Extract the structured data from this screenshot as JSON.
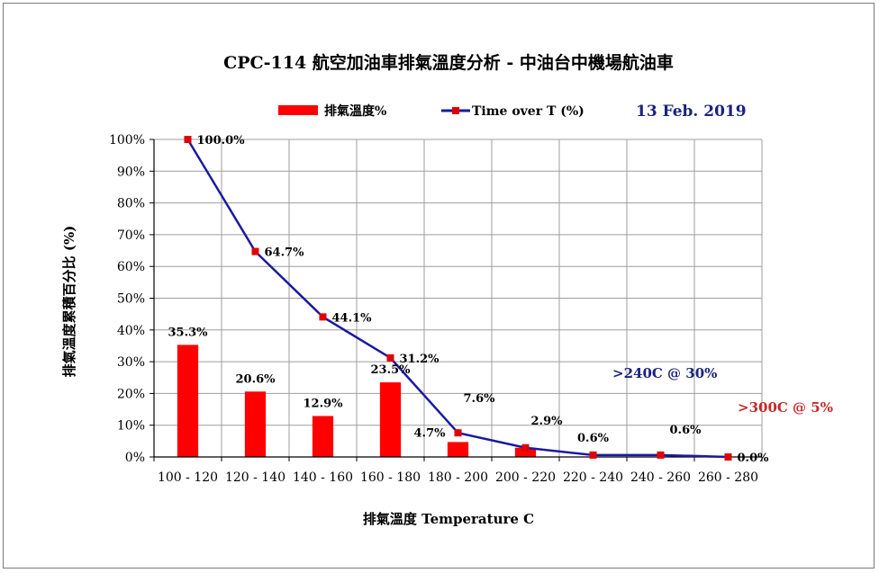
{
  "chart_data": {
    "type": "bar+line",
    "title": "CPC-114 航空加油車排氣溫度分析 - 中油台中機場航油車",
    "date_label": "13 Feb. 2019",
    "xlabel": "排氣溫度 Temperature C",
    "ylabel": "排氣溫度累積百分比 (%)",
    "categories": [
      "100 - 120",
      "120 - 140",
      "140 - 160",
      "160 - 180",
      "180 - 200",
      "200 - 220",
      "220 - 240",
      "240 - 260",
      "260 - 280"
    ],
    "ylim": [
      0,
      100
    ],
    "yticks": [
      "0%",
      "10%",
      "20%",
      "30%",
      "40%",
      "50%",
      "60%",
      "70%",
      "80%",
      "90%",
      "100%"
    ],
    "grid": true,
    "legend_position": "top",
    "series": [
      {
        "name": "排氣溫度%",
        "type": "bar",
        "color": "#ff0000",
        "values": [
          35.3,
          20.6,
          12.9,
          23.5,
          4.7,
          2.9,
          0,
          0,
          0
        ],
        "labels": [
          "35.3%",
          "20.6%",
          "12.9%",
          "23.5%",
          "4.7%",
          "",
          "",
          "",
          ""
        ]
      },
      {
        "name": "Time over T (%)",
        "type": "line",
        "color": "#1a1aa0",
        "marker_color": "#e00000",
        "values": [
          100.0,
          64.7,
          44.1,
          31.2,
          7.6,
          2.9,
          0.6,
          0.6,
          0.0
        ],
        "labels": [
          "100.0%",
          "64.7%",
          "44.1%",
          "31.2%",
          "7.6%",
          "2.9%",
          "0.6%",
          "0.6%",
          "0.0%"
        ]
      }
    ],
    "annotations": [
      {
        "text": ">240C @ 30%",
        "color": "#1a237e"
      },
      {
        "text": ">300C @ 5%",
        "color": "#c62828"
      }
    ]
  }
}
